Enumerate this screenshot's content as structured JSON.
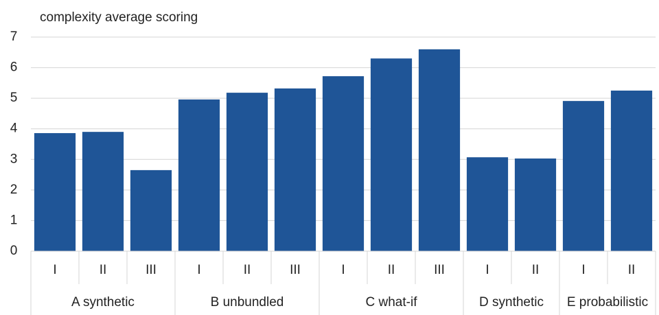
{
  "chart_data": {
    "type": "bar",
    "title": "complexity average scoring",
    "color": "#1f5597",
    "grid": true,
    "ylim": [
      0,
      7
    ],
    "yticks": [
      0,
      1,
      2,
      3,
      4,
      5,
      6,
      7
    ],
    "groups": [
      {
        "name": "A synthetic",
        "categories": [
          "I",
          "II",
          "III"
        ],
        "values": [
          3.86,
          3.9,
          2.65
        ]
      },
      {
        "name": "B unbundled",
        "categories": [
          "I",
          "II",
          "III"
        ],
        "values": [
          4.96,
          5.18,
          5.32
        ]
      },
      {
        "name": "C what-if",
        "categories": [
          "I",
          "II",
          "III"
        ],
        "values": [
          5.72,
          6.3,
          6.6
        ]
      },
      {
        "name": "D synthetic",
        "categories": [
          "I",
          "II"
        ],
        "values": [
          3.07,
          3.03
        ]
      },
      {
        "name": "E probabilistic",
        "categories": [
          "I",
          "II"
        ],
        "values": [
          4.91,
          5.25
        ]
      }
    ]
  }
}
